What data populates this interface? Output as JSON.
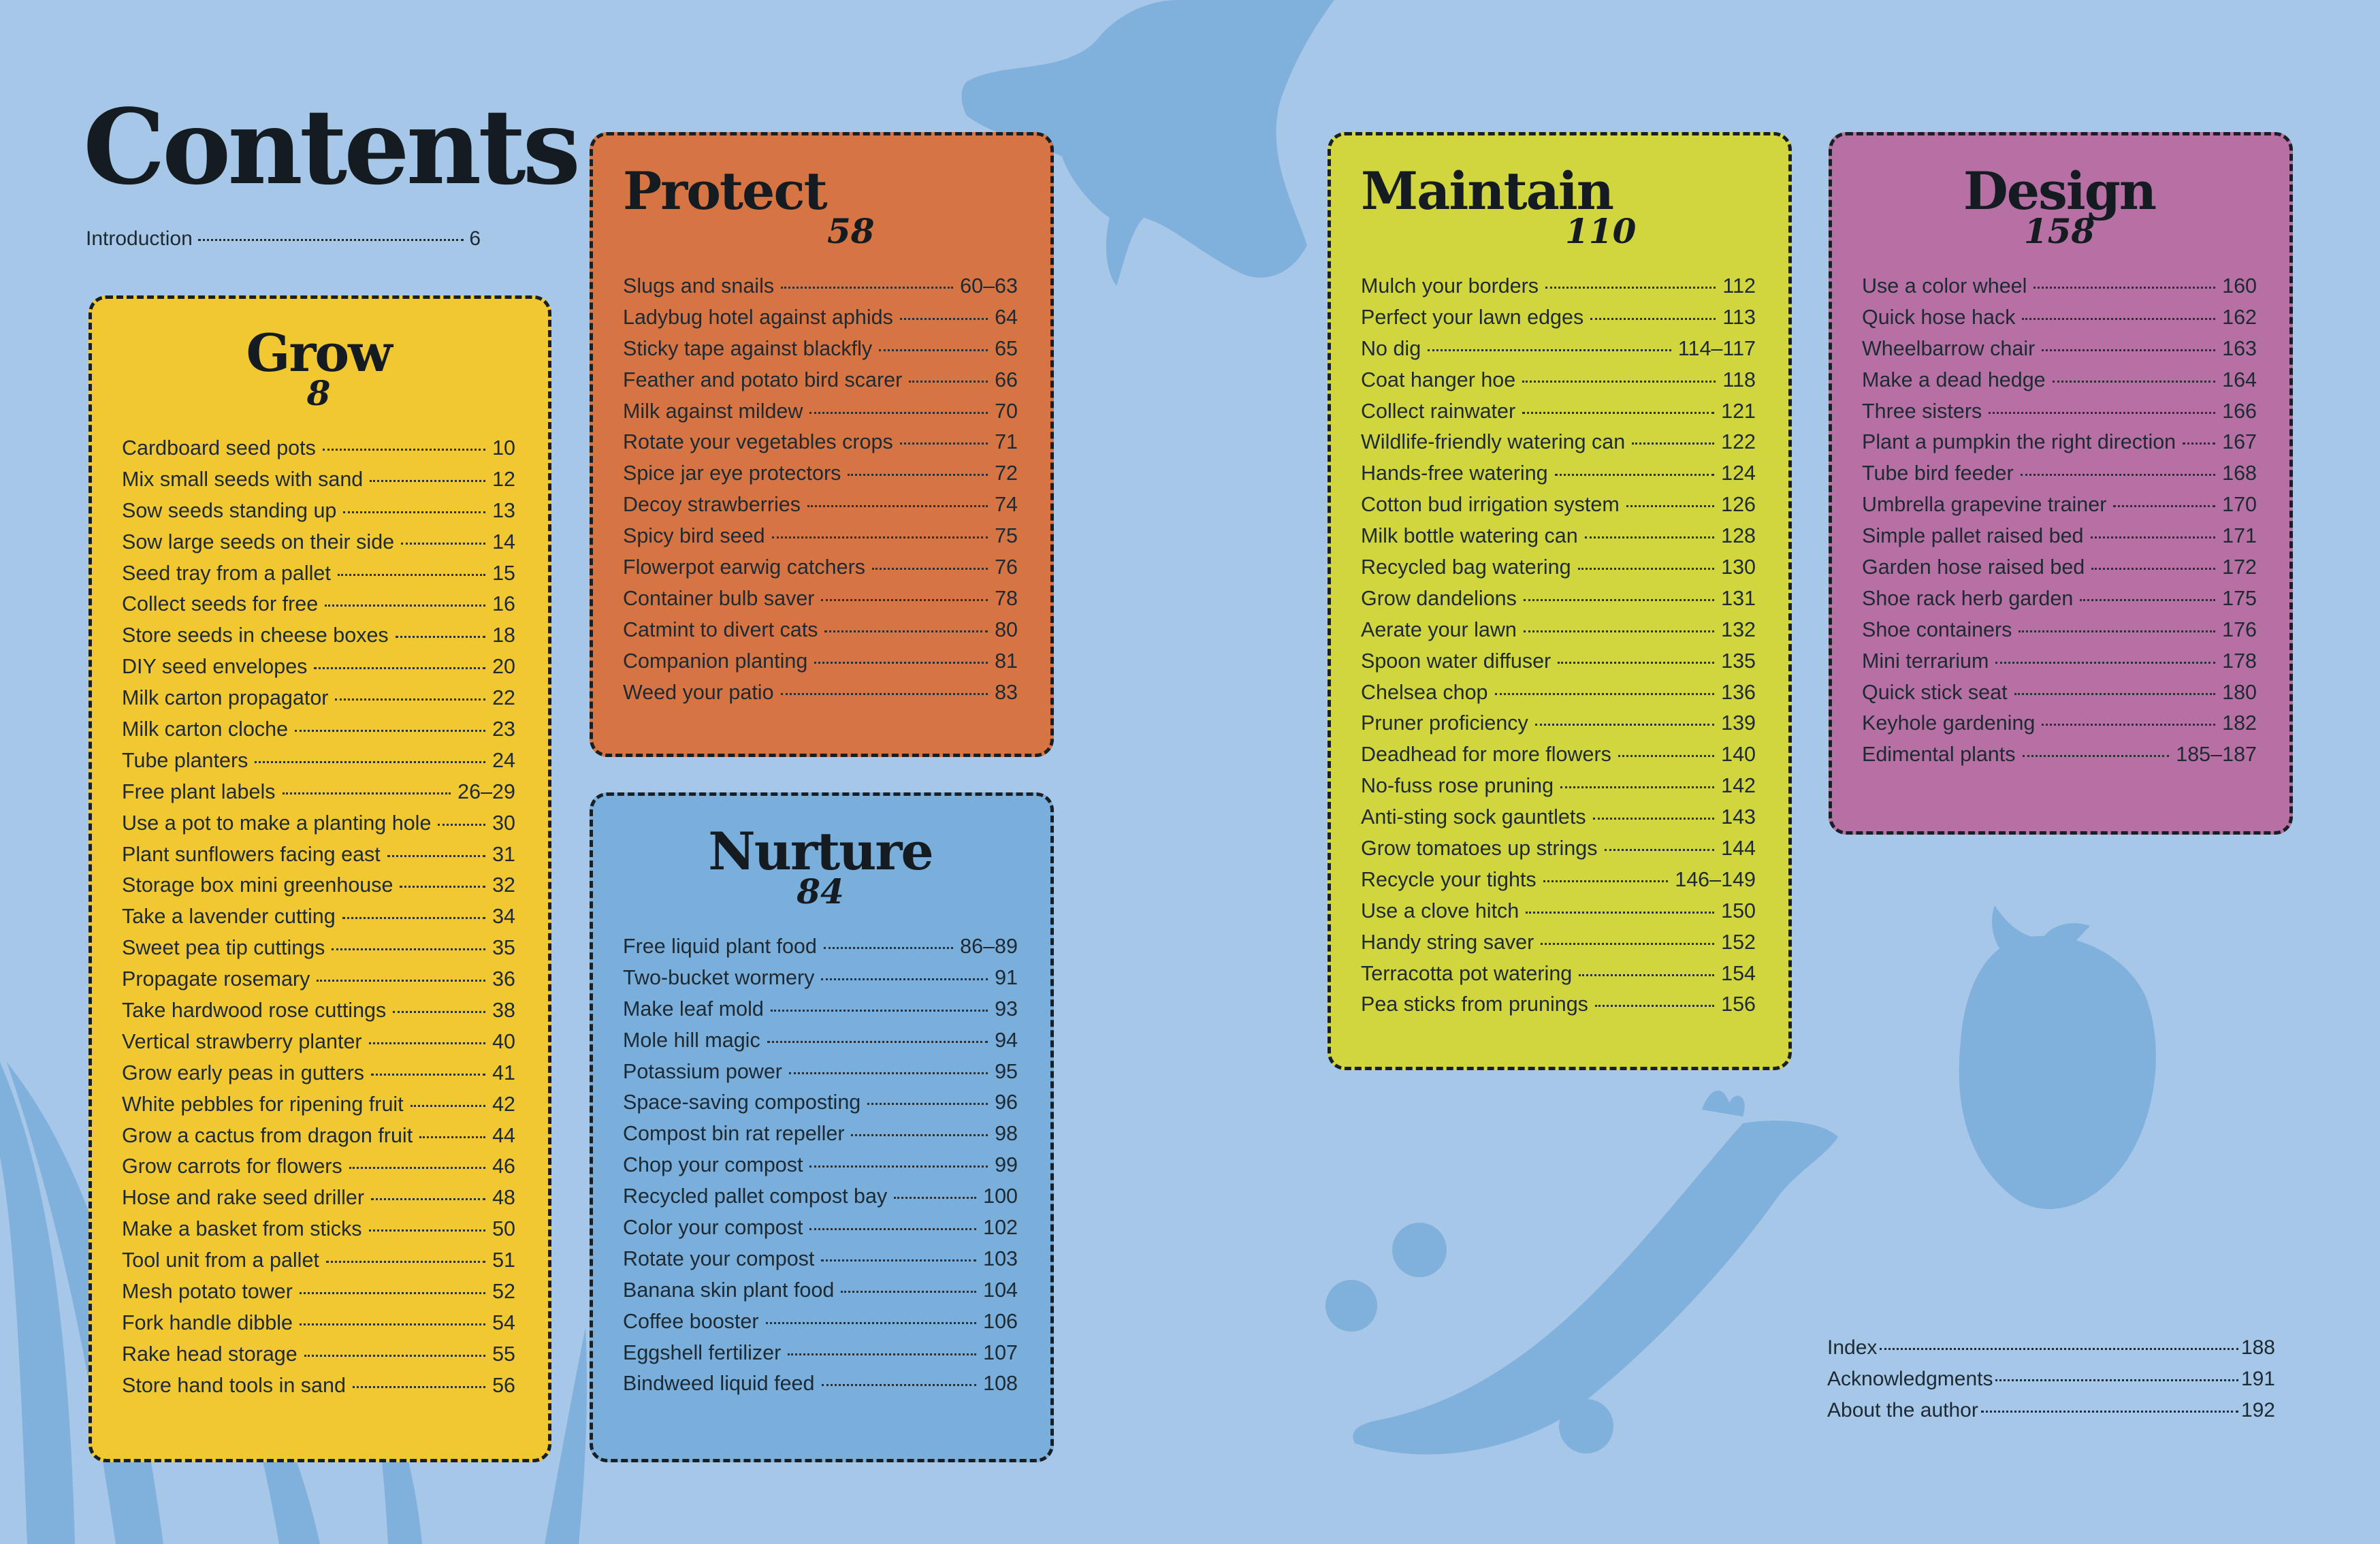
{
  "page": {
    "title": "Contents"
  },
  "intro": {
    "label": "Introduction",
    "page": "6"
  },
  "colors": {
    "background": "#a6c7e7",
    "silhouettes": "#80b0dc",
    "grow": "#f2c832",
    "protect": "#d67543",
    "nurture": "#7aaedb",
    "maintain": "#d2d63e",
    "design": "#b770a4"
  },
  "sections": {
    "grow": {
      "title": "Grow",
      "page": "8",
      "items": [
        {
          "label": "Cardboard seed pots",
          "page": "10"
        },
        {
          "label": "Mix small seeds with sand",
          "page": "12"
        },
        {
          "label": "Sow seeds standing up",
          "page": "13"
        },
        {
          "label": "Sow large seeds on their side",
          "page": "14"
        },
        {
          "label": "Seed tray from a pallet",
          "page": "15"
        },
        {
          "label": "Collect seeds for free",
          "page": "16"
        },
        {
          "label": "Store seeds in cheese boxes",
          "page": "18"
        },
        {
          "label": "DIY seed envelopes",
          "page": "20"
        },
        {
          "label": "Milk carton propagator",
          "page": "22"
        },
        {
          "label": "Milk carton cloche",
          "page": "23"
        },
        {
          "label": "Tube planters",
          "page": "24"
        },
        {
          "label": "Free plant labels",
          "page": "26–29"
        },
        {
          "label": "Use a pot to make a planting hole",
          "page": "30"
        },
        {
          "label": "Plant sunflowers facing east",
          "page": "31"
        },
        {
          "label": "Storage box mini greenhouse",
          "page": "32"
        },
        {
          "label": "Take a lavender cutting",
          "page": "34"
        },
        {
          "label": "Sweet pea tip cuttings",
          "page": "35"
        },
        {
          "label": "Propagate rosemary",
          "page": "36"
        },
        {
          "label": "Take hardwood rose cuttings",
          "page": "38"
        },
        {
          "label": "Vertical strawberry planter",
          "page": "40"
        },
        {
          "label": "Grow early peas in gutters",
          "page": "41"
        },
        {
          "label": "White pebbles for ripening fruit",
          "page": "42"
        },
        {
          "label": "Grow a cactus from dragon fruit",
          "page": "44"
        },
        {
          "label": "Grow carrots for flowers",
          "page": "46"
        },
        {
          "label": "Hose and rake seed driller",
          "page": "48"
        },
        {
          "label": "Make a basket from sticks",
          "page": "50"
        },
        {
          "label": "Tool unit from a pallet",
          "page": "51"
        },
        {
          "label": "Mesh potato tower",
          "page": "52"
        },
        {
          "label": "Fork handle dibble",
          "page": "54"
        },
        {
          "label": "Rake head storage",
          "page": "55"
        },
        {
          "label": "Store hand tools in sand",
          "page": "56"
        }
      ]
    },
    "protect": {
      "title": "Protect",
      "page": "58",
      "items": [
        {
          "label": "Slugs and snails",
          "page": "60–63"
        },
        {
          "label": "Ladybug hotel against aphids",
          "page": "64"
        },
        {
          "label": "Sticky tape against blackfly",
          "page": "65"
        },
        {
          "label": "Feather and potato bird scarer",
          "page": "66"
        },
        {
          "label": "Milk against mildew",
          "page": "70"
        },
        {
          "label": "Rotate your vegetables crops",
          "page": "71"
        },
        {
          "label": "Spice jar eye protectors",
          "page": "72"
        },
        {
          "label": "Decoy strawberries",
          "page": "74"
        },
        {
          "label": "Spicy bird seed",
          "page": "75"
        },
        {
          "label": "Flowerpot earwig catchers",
          "page": "76"
        },
        {
          "label": "Container bulb saver",
          "page": "78"
        },
        {
          "label": "Catmint to divert cats",
          "page": "80"
        },
        {
          "label": "Companion planting",
          "page": "81"
        },
        {
          "label": "Weed your patio",
          "page": "83"
        }
      ]
    },
    "nurture": {
      "title": "Nurture",
      "page": "84",
      "items": [
        {
          "label": "Free liquid plant food",
          "page": "86–89"
        },
        {
          "label": "Two-bucket wormery",
          "page": "91"
        },
        {
          "label": "Make leaf mold",
          "page": "93"
        },
        {
          "label": "Mole hill magic",
          "page": "94"
        },
        {
          "label": "Potassium power",
          "page": "95"
        },
        {
          "label": "Space-saving composting",
          "page": "96"
        },
        {
          "label": "Compost bin rat repeller",
          "page": "98"
        },
        {
          "label": "Chop your compost",
          "page": "99"
        },
        {
          "label": "Recycled pallet compost bay",
          "page": "100"
        },
        {
          "label": "Color your compost",
          "page": "102"
        },
        {
          "label": "Rotate your compost",
          "page": "103"
        },
        {
          "label": "Banana skin plant food",
          "page": "104"
        },
        {
          "label": "Coffee booster",
          "page": "106"
        },
        {
          "label": "Eggshell fertilizer",
          "page": "107"
        },
        {
          "label": "Bindweed liquid feed",
          "page": "108"
        }
      ]
    },
    "maintain": {
      "title": "Maintain",
      "page": "110",
      "items": [
        {
          "label": "Mulch your borders",
          "page": "112"
        },
        {
          "label": "Perfect your lawn edges",
          "page": "113"
        },
        {
          "label": "No dig",
          "page": "114–117"
        },
        {
          "label": "Coat hanger hoe",
          "page": "118"
        },
        {
          "label": "Collect rainwater",
          "page": "121"
        },
        {
          "label": "Wildlife-friendly watering can",
          "page": "122"
        },
        {
          "label": "Hands-free watering",
          "page": "124"
        },
        {
          "label": "Cotton bud irrigation system",
          "page": "126"
        },
        {
          "label": "Milk bottle watering can",
          "page": "128"
        },
        {
          "label": "Recycled bag watering",
          "page": "130"
        },
        {
          "label": "Grow dandelions",
          "page": "131"
        },
        {
          "label": "Aerate your lawn",
          "page": "132"
        },
        {
          "label": "Spoon water diffuser",
          "page": "135"
        },
        {
          "label": "Chelsea chop",
          "page": "136"
        },
        {
          "label": "Pruner proficiency",
          "page": "139"
        },
        {
          "label": "Deadhead for more flowers",
          "page": "140"
        },
        {
          "label": "No-fuss rose pruning",
          "page": "142"
        },
        {
          "label": "Anti-sting sock gauntlets",
          "page": "143"
        },
        {
          "label": "Grow tomatoes up strings",
          "page": "144"
        },
        {
          "label": "Recycle your tights",
          "page": "146–149"
        },
        {
          "label": "Use a clove hitch",
          "page": "150"
        },
        {
          "label": "Handy string saver",
          "page": "152"
        },
        {
          "label": "Terracotta pot watering",
          "page": "154"
        },
        {
          "label": "Pea sticks from prunings",
          "page": "156"
        }
      ]
    },
    "design": {
      "title": "Design",
      "page": "158",
      "items": [
        {
          "label": "Use a color wheel",
          "page": "160"
        },
        {
          "label": "Quick hose hack",
          "page": "162"
        },
        {
          "label": "Wheelbarrow chair",
          "page": "163"
        },
        {
          "label": "Make a dead hedge",
          "page": "164"
        },
        {
          "label": "Three sisters",
          "page": "166"
        },
        {
          "label": "Plant a pumpkin the right direction",
          "page": "167"
        },
        {
          "label": "Tube bird feeder",
          "page": "168"
        },
        {
          "label": "Umbrella grapevine trainer",
          "page": "170"
        },
        {
          "label": "Simple pallet raised bed",
          "page": "171"
        },
        {
          "label": "Garden hose raised bed",
          "page": "172"
        },
        {
          "label": "Shoe rack herb garden",
          "page": "175"
        },
        {
          "label": "Shoe containers",
          "page": "176"
        },
        {
          "label": "Mini terrarium",
          "page": "178"
        },
        {
          "label": "Quick stick seat",
          "page": "180"
        },
        {
          "label": "Keyhole gardening",
          "page": "182"
        },
        {
          "label": "Edimental plants",
          "page": "185–187"
        }
      ]
    }
  },
  "back_matter": [
    {
      "label": "Index",
      "page": "188"
    },
    {
      "label": "Acknowledgments",
      "page": "191"
    },
    {
      "label": "About the author",
      "page": "192"
    }
  ]
}
